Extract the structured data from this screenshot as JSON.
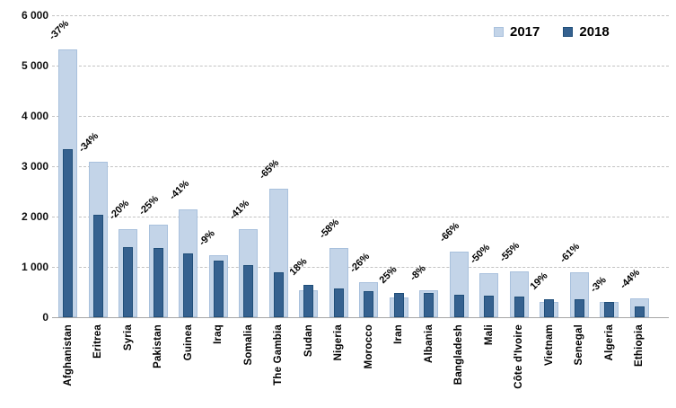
{
  "chart_data": {
    "type": "bar",
    "title": "",
    "xlabel": "",
    "ylabel": "",
    "ylim": [
      0,
      6000
    ],
    "grid": "horizontal-dashed",
    "legend_position": "top-right",
    "categories": [
      "Afghanistan",
      "Eritrea",
      "Syria",
      "Pakistan",
      "Guinea",
      "Iraq",
      "Somalia",
      "The Gambia",
      "Sudan",
      "Nigeria",
      "Morocco",
      "Iran",
      "Albania",
      "Bangladesh",
      "Mali",
      "Côte d'Ivoire",
      "Vietnam",
      "Senegal",
      "Algeria",
      "Ethiopia"
    ],
    "series": [
      {
        "name": "2017",
        "color": "#c3d4e8",
        "values": [
          5320,
          3090,
          1750,
          1840,
          2150,
          1230,
          1750,
          2560,
          540,
          1370,
          690,
          390,
          530,
          1310,
          870,
          920,
          305,
          900,
          310,
          375
        ]
      },
      {
        "name": "2018",
        "color": "#35618f",
        "values": [
          3340,
          2040,
          1400,
          1380,
          1270,
          1130,
          1030,
          900,
          640,
          575,
          510,
          490,
          490,
          450,
          435,
          415,
          365,
          350,
          300,
          210
        ]
      }
    ],
    "point_labels": [
      "-37%",
      "-34%",
      "-20%",
      "-25%",
      "-41%",
      "-9%",
      "-41%",
      "-65%",
      "18%",
      "-58%",
      "-26%",
      "25%",
      "-8%",
      "-66%",
      "-50%",
      "-55%",
      "19%",
      "-61%",
      "-3%",
      "-44%"
    ],
    "y_ticks": [
      {
        "value": 6000,
        "label": "6 000"
      },
      {
        "value": 5000,
        "label": "5 000"
      },
      {
        "value": 4000,
        "label": "4 000"
      },
      {
        "value": 3000,
        "label": "3 000"
      },
      {
        "value": 2000,
        "label": "2 000"
      },
      {
        "value": 1000,
        "label": "1 000"
      },
      {
        "value": 0,
        "label": "0"
      }
    ]
  },
  "colors": {
    "bar_2017": "#c3d4e8",
    "bar_2017_border": "#a9c1dd",
    "bar_2018": "#35618f",
    "bar_2018_border": "#1f4e79",
    "gridline": "#c3c3c3",
    "axis_line": "#a6a6a6",
    "text": "#000000",
    "background": "#ffffff"
  }
}
